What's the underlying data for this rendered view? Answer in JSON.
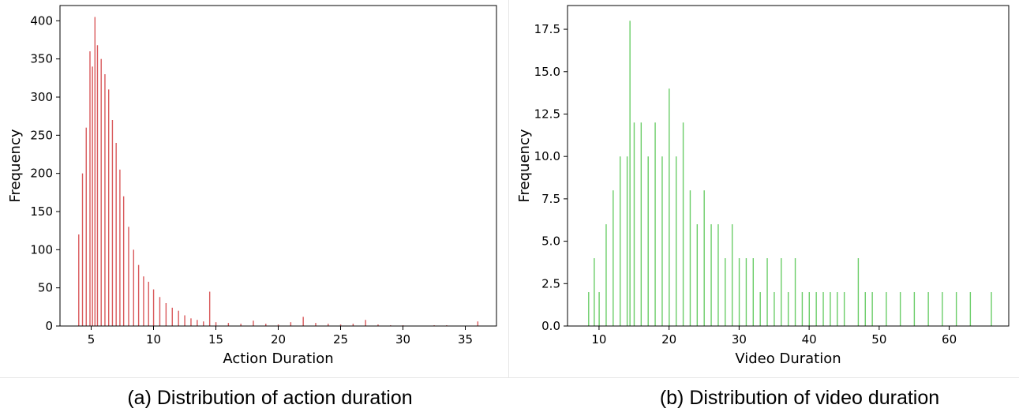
{
  "chart_data": [
    {
      "type": "histogram",
      "xlabel": "Action Duration",
      "ylabel": "Frequency",
      "xlim": [
        2.5,
        37.5
      ],
      "ylim": [
        0,
        420
      ],
      "xticks": [
        5,
        10,
        15,
        20,
        25,
        30,
        35
      ],
      "yticks": [
        0,
        50,
        100,
        150,
        200,
        250,
        300,
        350,
        400
      ],
      "color": "#d9595b",
      "bin_width": 0.08,
      "bins": [
        {
          "x": 4.0,
          "y": 120
        },
        {
          "x": 4.3,
          "y": 200
        },
        {
          "x": 4.6,
          "y": 260
        },
        {
          "x": 4.9,
          "y": 360
        },
        {
          "x": 5.1,
          "y": 340
        },
        {
          "x": 5.3,
          "y": 405
        },
        {
          "x": 5.5,
          "y": 368
        },
        {
          "x": 5.8,
          "y": 350
        },
        {
          "x": 6.1,
          "y": 330
        },
        {
          "x": 6.4,
          "y": 310
        },
        {
          "x": 6.7,
          "y": 270
        },
        {
          "x": 7.0,
          "y": 240
        },
        {
          "x": 7.3,
          "y": 205
        },
        {
          "x": 7.6,
          "y": 170
        },
        {
          "x": 8.0,
          "y": 130
        },
        {
          "x": 8.4,
          "y": 100
        },
        {
          "x": 8.8,
          "y": 80
        },
        {
          "x": 9.2,
          "y": 65
        },
        {
          "x": 9.6,
          "y": 58
        },
        {
          "x": 10.0,
          "y": 48
        },
        {
          "x": 10.5,
          "y": 38
        },
        {
          "x": 11.0,
          "y": 30
        },
        {
          "x": 11.5,
          "y": 24
        },
        {
          "x": 12.0,
          "y": 20
        },
        {
          "x": 12.5,
          "y": 14
        },
        {
          "x": 13.0,
          "y": 10
        },
        {
          "x": 13.5,
          "y": 8
        },
        {
          "x": 14.0,
          "y": 6
        },
        {
          "x": 14.5,
          "y": 45
        },
        {
          "x": 15.0,
          "y": 5
        },
        {
          "x": 16.0,
          "y": 4
        },
        {
          "x": 17.0,
          "y": 3
        },
        {
          "x": 18.0,
          "y": 7
        },
        {
          "x": 19.0,
          "y": 3
        },
        {
          "x": 20.0,
          "y": 2
        },
        {
          "x": 21.0,
          "y": 5
        },
        {
          "x": 22.0,
          "y": 12
        },
        {
          "x": 23.0,
          "y": 4
        },
        {
          "x": 24.0,
          "y": 3
        },
        {
          "x": 25.0,
          "y": 2
        },
        {
          "x": 26.0,
          "y": 3
        },
        {
          "x": 27.0,
          "y": 8
        },
        {
          "x": 28.0,
          "y": 2
        },
        {
          "x": 29.0,
          "y": 1
        },
        {
          "x": 30.0,
          "y": 1
        },
        {
          "x": 32.5,
          "y": 1
        },
        {
          "x": 33.5,
          "y": 1
        },
        {
          "x": 36.0,
          "y": 6
        }
      ]
    },
    {
      "type": "histogram",
      "xlabel": "Video Duration",
      "ylabel": "Frequency",
      "xlim": [
        5.5,
        68.5
      ],
      "ylim": [
        0,
        18.9
      ],
      "xticks": [
        10,
        20,
        30,
        40,
        50,
        60
      ],
      "yticks": [
        0.0,
        2.5,
        5.0,
        7.5,
        10.0,
        12.5,
        15.0,
        17.5
      ],
      "yticklabels": [
        "0.0",
        "2.5",
        "5.0",
        "7.5",
        "10.0",
        "12.5",
        "15.0",
        "17.5"
      ],
      "color": "#6bcd68",
      "bin_width": 0.12,
      "bins": [
        {
          "x": 8.5,
          "y": 2
        },
        {
          "x": 9.3,
          "y": 4
        },
        {
          "x": 10.0,
          "y": 2
        },
        {
          "x": 11.0,
          "y": 6
        },
        {
          "x": 12.0,
          "y": 8
        },
        {
          "x": 13.0,
          "y": 10
        },
        {
          "x": 14.0,
          "y": 10
        },
        {
          "x": 14.4,
          "y": 18
        },
        {
          "x": 15.0,
          "y": 12
        },
        {
          "x": 16.0,
          "y": 12
        },
        {
          "x": 17.0,
          "y": 10
        },
        {
          "x": 18.0,
          "y": 12
        },
        {
          "x": 19.0,
          "y": 10
        },
        {
          "x": 20.0,
          "y": 14
        },
        {
          "x": 21.0,
          "y": 10
        },
        {
          "x": 22.0,
          "y": 12
        },
        {
          "x": 23.0,
          "y": 8
        },
        {
          "x": 24.0,
          "y": 6
        },
        {
          "x": 25.0,
          "y": 8
        },
        {
          "x": 26.0,
          "y": 6
        },
        {
          "x": 27.0,
          "y": 6
        },
        {
          "x": 28.0,
          "y": 4
        },
        {
          "x": 29.0,
          "y": 6
        },
        {
          "x": 30.0,
          "y": 4
        },
        {
          "x": 31.0,
          "y": 4
        },
        {
          "x": 32.0,
          "y": 4
        },
        {
          "x": 33.0,
          "y": 2
        },
        {
          "x": 34.0,
          "y": 4
        },
        {
          "x": 35.0,
          "y": 2
        },
        {
          "x": 36.0,
          "y": 4
        },
        {
          "x": 37.0,
          "y": 2
        },
        {
          "x": 38.0,
          "y": 4
        },
        {
          "x": 39.0,
          "y": 2
        },
        {
          "x": 40.0,
          "y": 2
        },
        {
          "x": 41.0,
          "y": 2
        },
        {
          "x": 42.0,
          "y": 2
        },
        {
          "x": 43.0,
          "y": 2
        },
        {
          "x": 44.0,
          "y": 2
        },
        {
          "x": 45.0,
          "y": 2
        },
        {
          "x": 47.0,
          "y": 4
        },
        {
          "x": 48.0,
          "y": 2
        },
        {
          "x": 49.0,
          "y": 2
        },
        {
          "x": 51.0,
          "y": 2
        },
        {
          "x": 53.0,
          "y": 2
        },
        {
          "x": 55.0,
          "y": 2
        },
        {
          "x": 57.0,
          "y": 2
        },
        {
          "x": 59.0,
          "y": 2
        },
        {
          "x": 61.0,
          "y": 2
        },
        {
          "x": 63.0,
          "y": 2
        },
        {
          "x": 66.0,
          "y": 2
        }
      ]
    }
  ],
  "captions": {
    "a": "(a) Distribution of action duration",
    "b": "(b) Distribution of video duration"
  }
}
